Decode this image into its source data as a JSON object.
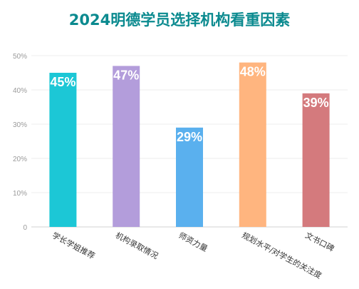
{
  "chart_data": {
    "type": "bar",
    "title": "2024明德学员选择机构看重因素",
    "title_color": "#0b8a8f",
    "categories": [
      "学长学姐推荐",
      "机构录取情况",
      "师资力量",
      "规划水平/对学生的关注度",
      "文书口碑"
    ],
    "values": [
      45,
      47,
      29,
      48,
      39
    ],
    "data_labels": [
      "45%",
      "47%",
      "29%",
      "48%",
      "39%"
    ],
    "colors": [
      "#1cc7d6",
      "#b39ddb",
      "#5ab0ee",
      "#ffb57f",
      "#d47a7d"
    ],
    "ylim": [
      0,
      50
    ],
    "y_ticks": [
      "0",
      "10%",
      "20%",
      "30%",
      "40%",
      "50%"
    ],
    "y_tick_values": [
      0,
      10,
      20,
      30,
      40,
      50
    ],
    "grid": true,
    "legend": "none"
  }
}
